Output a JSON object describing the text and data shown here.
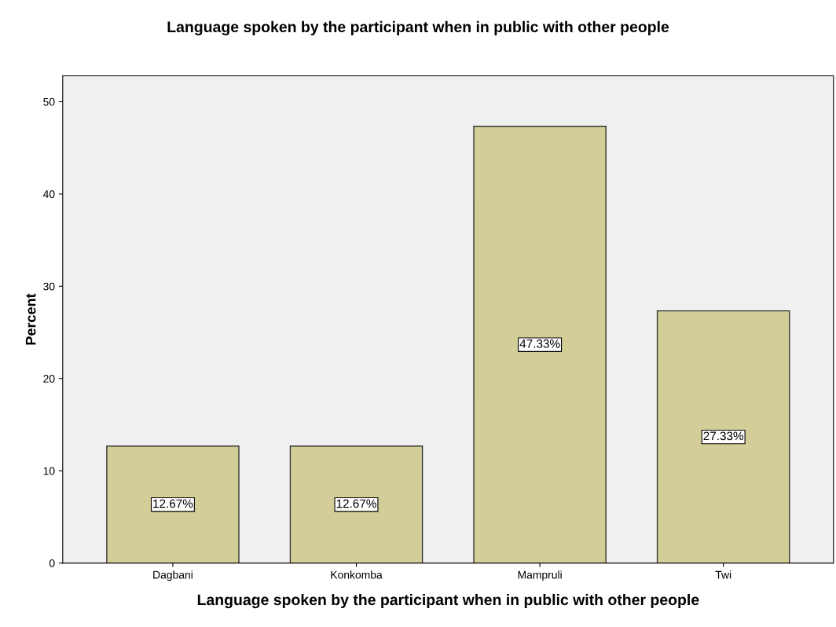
{
  "chart_data": {
    "type": "bar",
    "title": "Language spoken by the participant when in public with other people",
    "xlabel": "Language spoken by the participant when in public with other people",
    "ylabel": "Percent",
    "categories": [
      "Dagbani",
      "Konkomba",
      "Mampruli",
      "Twi"
    ],
    "values": [
      12.67,
      12.67,
      47.33,
      27.33
    ],
    "value_labels": [
      "12.67%",
      "12.67%",
      "47.33%",
      "27.33%"
    ],
    "color": "#d3ce97",
    "ylim": [
      0,
      52.8
    ],
    "yticks": [
      0,
      10,
      20,
      30,
      40,
      50
    ],
    "grid": false
  }
}
